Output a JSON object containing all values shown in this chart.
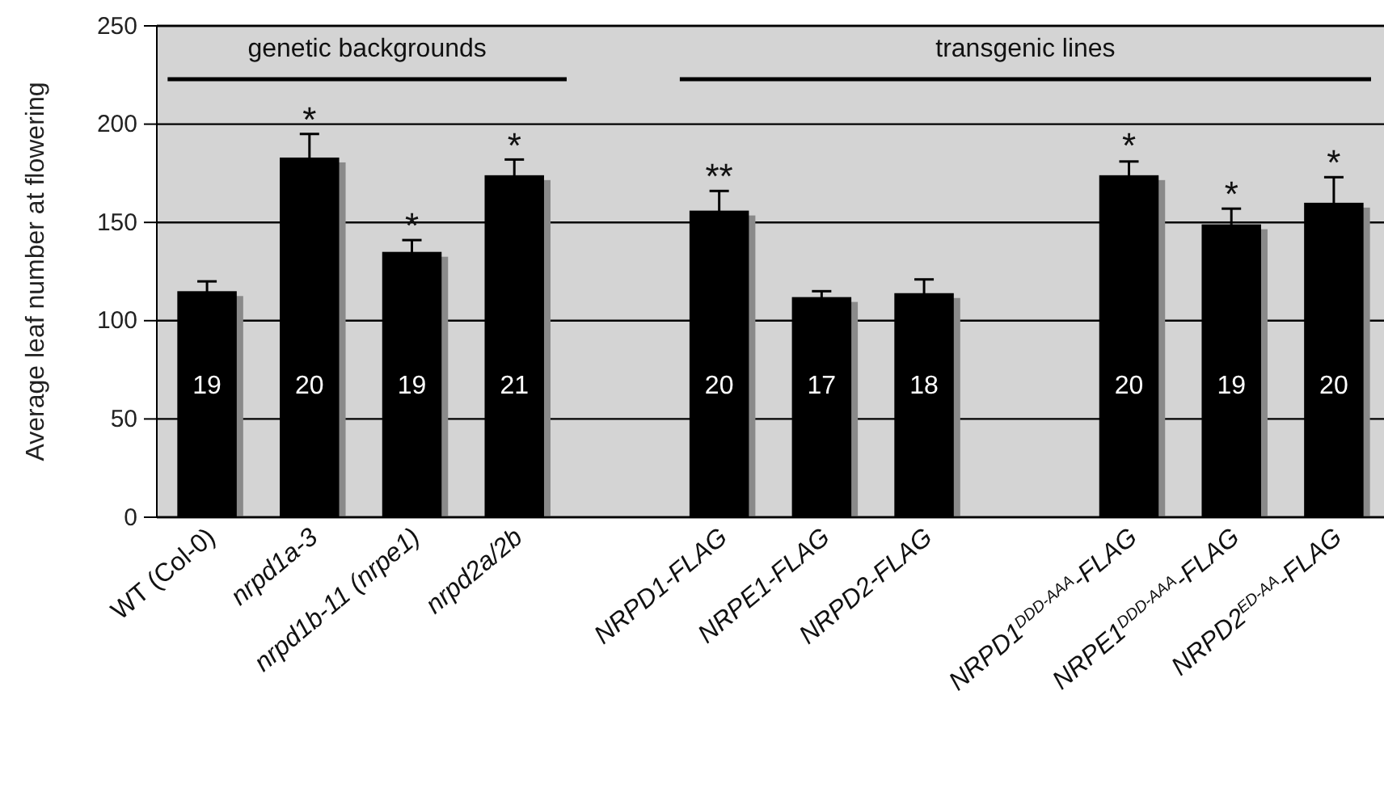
{
  "chart_data": {
    "type": "bar",
    "ylabel": "Average leaf number at flowering",
    "categories": [
      "WT (Col-0)",
      "nrpd1a-3",
      "nrpd1b-11 (nrpe1)",
      "nrpd2a/2b",
      null,
      "NRPD1-FLAG",
      "NRPE1-FLAG",
      "NRPD2-FLAG",
      null,
      "NRPD1$^{DDD-AAA}$-FLAG",
      "NRPE1$^{DDD-AAA}$-FLAG",
      "NRPD2$^{ED-AA}$-FLAG"
    ],
    "values": [
      115,
      183,
      135,
      174,
      null,
      156,
      112,
      114,
      null,
      174,
      149,
      160
    ],
    "errors": [
      5,
      12,
      6,
      8,
      null,
      10,
      3,
      7,
      null,
      7,
      8,
      13
    ],
    "color": "#000000",
    "ylim": [
      0,
      250
    ],
    "yticks": [
      0,
      50,
      100,
      150,
      200,
      250
    ],
    "grid": "y",
    "annotations": [
      "genetic backgrounds",
      "transgenic lines",
      "19",
      "20",
      "19",
      "21",
      "20",
      "17",
      "18",
      "20",
      "19",
      "20",
      {
        "text": "*",
        "x": "nrpd1a-3",
        "y": 197
      },
      {
        "text": "*",
        "x": "nrpd1b-11 (nrpe1)",
        "y": 143
      },
      {
        "text": "*",
        "x": "nrpd2a/2b",
        "y": 184
      },
      {
        "text": "**",
        "x": "NRPD1-FLAG",
        "y": 168
      },
      {
        "text": "*",
        "x": "NRPD1$^{DDD-AAA}$-FLAG",
        "y": 184
      },
      {
        "text": "*",
        "x": "NRPE1$^{DDD-AAA}$-FLAG",
        "y": 159
      },
      {
        "text": "*",
        "x": "NRPD2$^{ED-AA}$-FLAG",
        "y": 175
      }
    ]
  }
}
